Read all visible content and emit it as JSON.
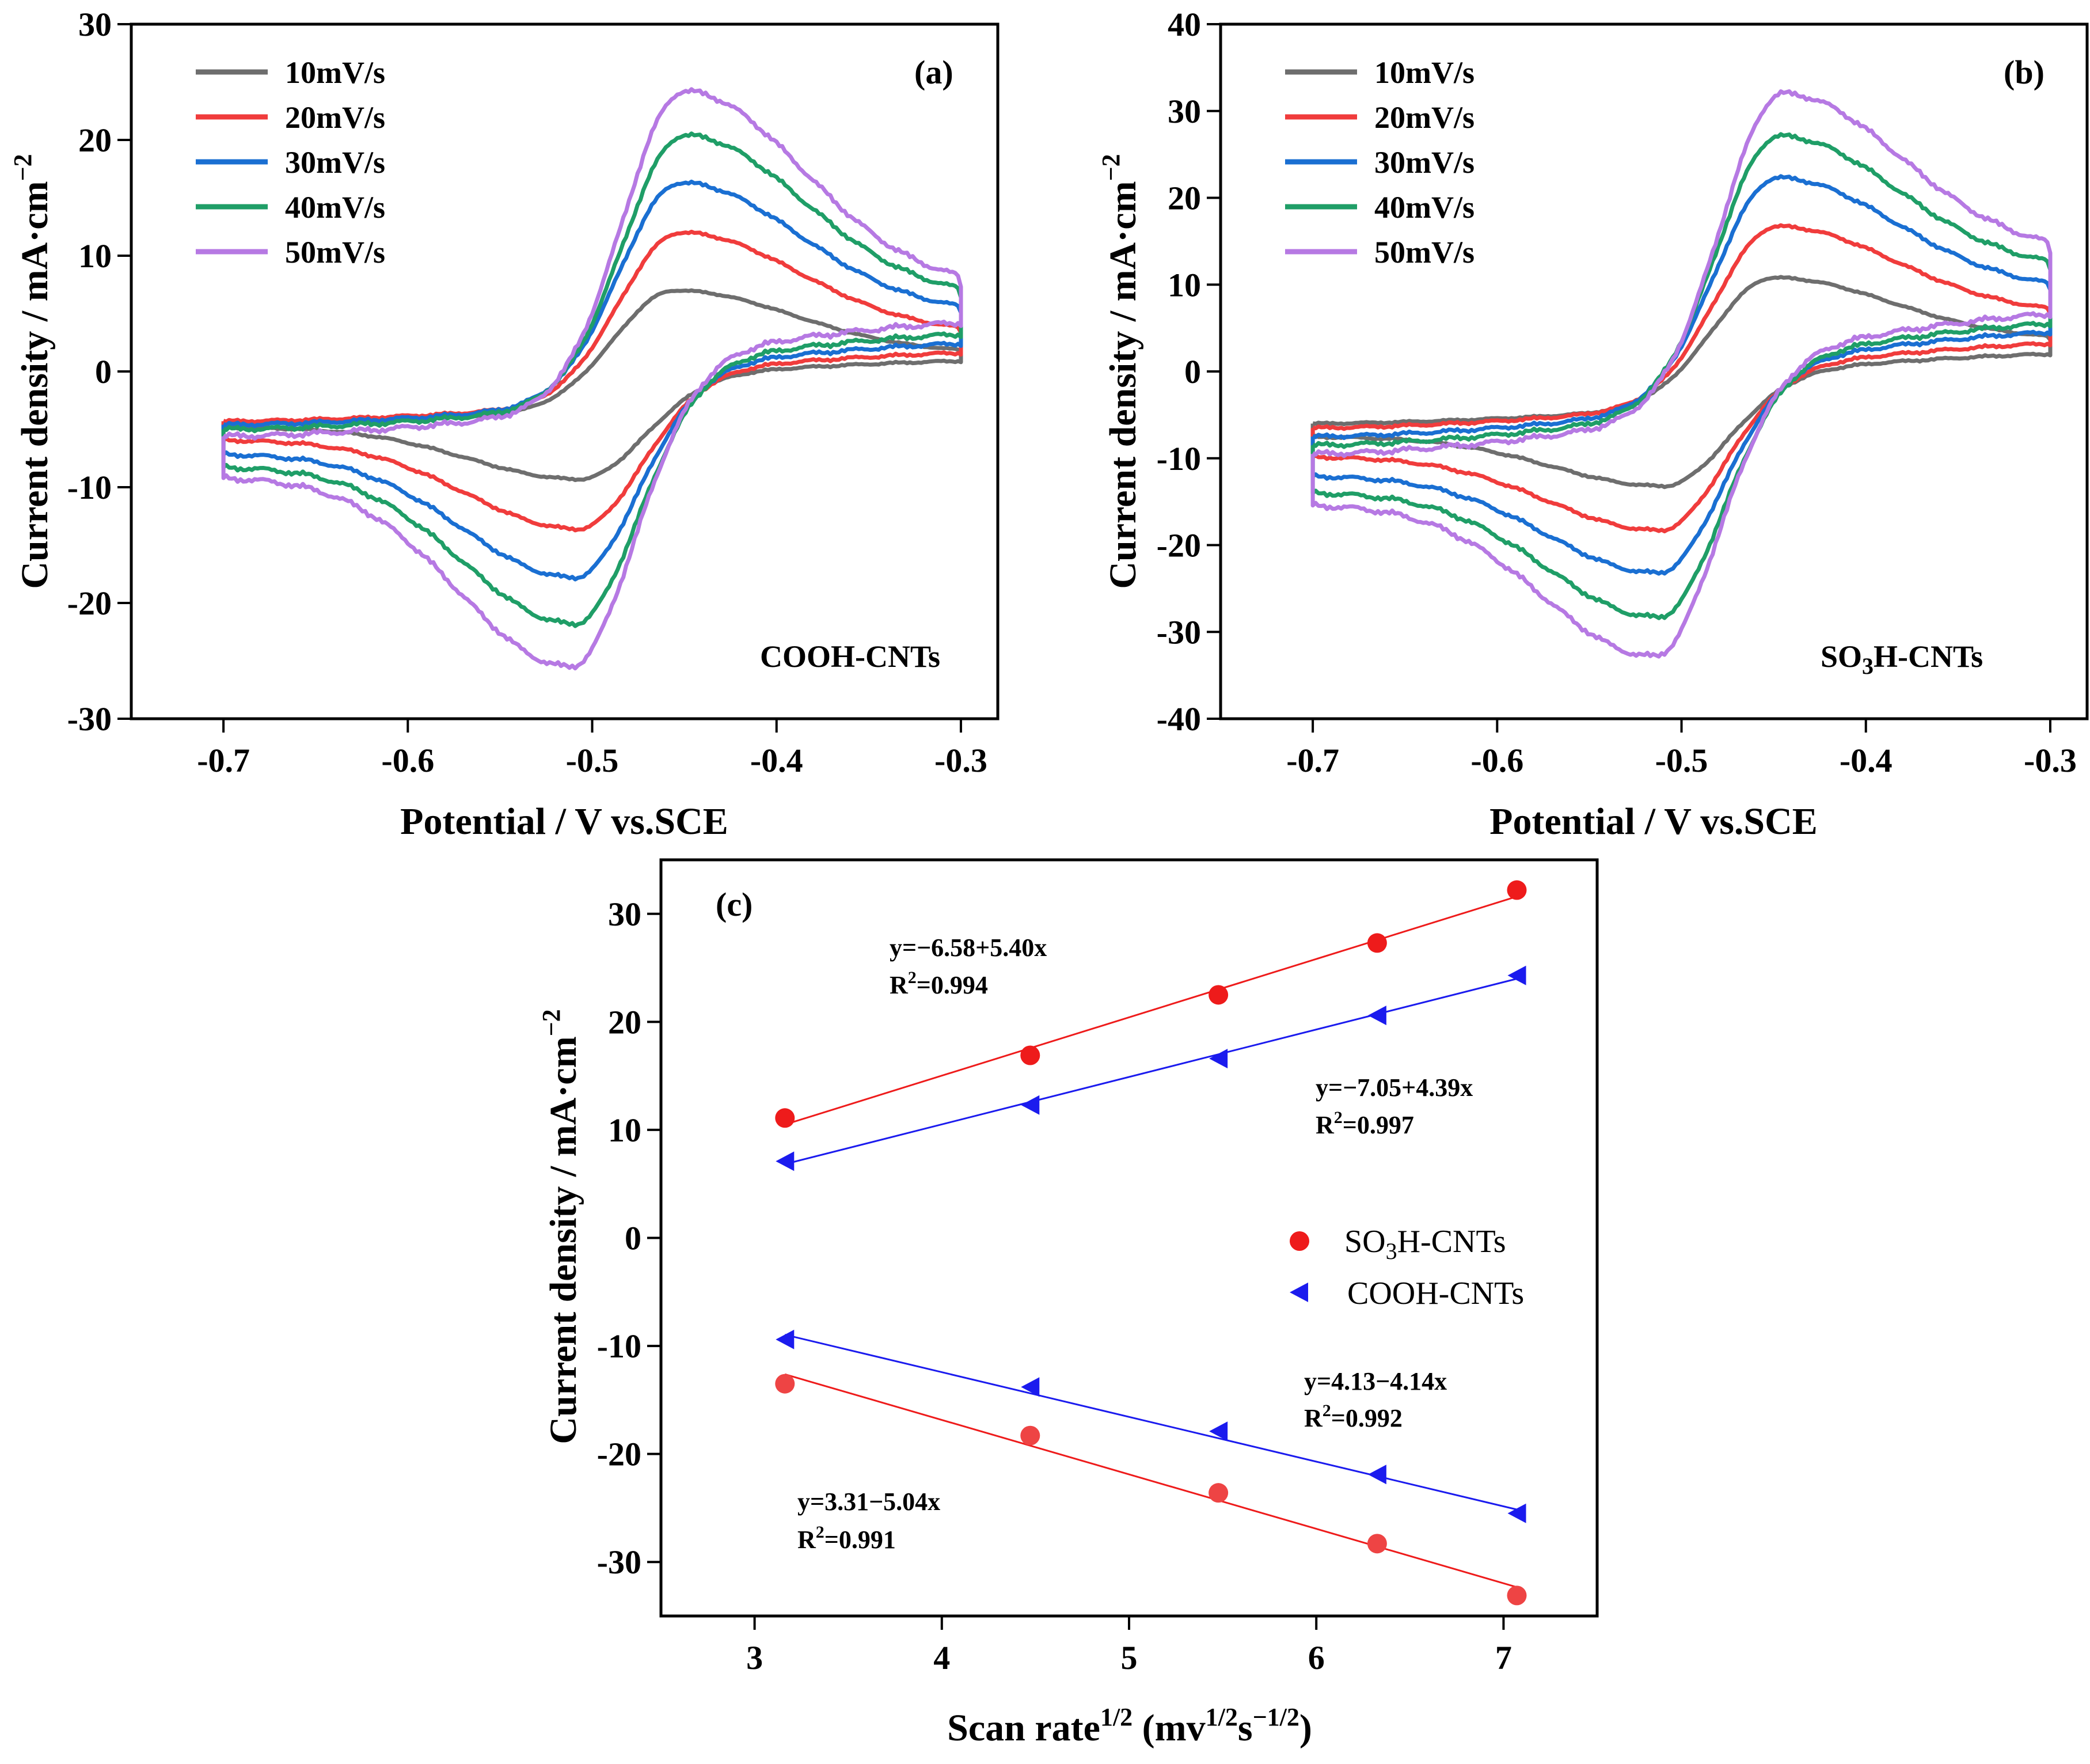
{
  "figure": {
    "colors": {
      "10mV/s": "#6e6e6e",
      "20mV/s": "#f03c3c",
      "30mV/s": "#1a6fd2",
      "40mV/s": "#1f9e67",
      "50mV/s": "#b679e3",
      "SO3H-CNTs": "#ee1b1b",
      "COOH-CNTs": "#1b1bee"
    }
  },
  "chart_data": [
    {
      "id": "a",
      "type": "line",
      "panel_label": "(a)",
      "material_label": "COOH-CNTs",
      "xlabel": "Potential / V vs.SCE",
      "ylabel": "Current density / mA·cm",
      "ylabel_sup": "−2",
      "xlim": [
        -0.75,
        -0.28
      ],
      "ylim": [
        -30,
        30
      ],
      "x_ticks": [
        -0.7,
        -0.6,
        -0.5,
        -0.4,
        -0.3
      ],
      "x_tick_labels": [
        "-0.7",
        "-0.6",
        "-0.5",
        "-0.4",
        "-0.3"
      ],
      "y_ticks": [
        -30,
        -20,
        -10,
        0,
        10,
        20,
        30
      ],
      "y_tick_labels": [
        "-30",
        "-20",
        "-10",
        "0",
        "10",
        "20",
        "30"
      ],
      "legend": "top-left",
      "series": [
        {
          "name": "10mV/s",
          "anodic_peak": [
            -0.455,
            7.0
          ],
          "cathodic_peak": [
            -0.507,
            -9.3
          ],
          "start_low": -4.5,
          "start_high": -4.8,
          "end_high": 1.6,
          "end_low": 0.9
        },
        {
          "name": "20mV/s",
          "anodic_peak": [
            -0.452,
            12.0
          ],
          "cathodic_peak": [
            -0.508,
            -13.6
          ],
          "start_low": -4.3,
          "start_high": -5.9,
          "end_high": 3.3,
          "end_low": 1.6
        },
        {
          "name": "30mV/s",
          "anodic_peak": [
            -0.452,
            16.3
          ],
          "cathodic_peak": [
            -0.51,
            -17.8
          ],
          "start_low": -4.6,
          "start_high": -7.1,
          "end_high": 5.0,
          "end_low": 2.4
        },
        {
          "name": "40mV/s",
          "anodic_peak": [
            -0.45,
            20.4
          ],
          "cathodic_peak": [
            -0.51,
            -21.8
          ],
          "start_low": -5.0,
          "start_high": -8.2,
          "end_high": 6.3,
          "end_low": 3.2
        },
        {
          "name": "50mV/s",
          "anodic_peak": [
            -0.45,
            24.2
          ],
          "cathodic_peak": [
            -0.512,
            -25.5
          ],
          "start_low": -5.6,
          "start_high": -9.1,
          "end_high": 7.2,
          "end_low": 4.2
        }
      ]
    },
    {
      "id": "b",
      "type": "line",
      "panel_label": "(b)",
      "material_label": "SO",
      "material_sub": "3",
      "material_rest": "H-CNTs",
      "xlabel": "Potential / V vs.SCE",
      "ylabel": "Current density / mA·cm",
      "ylabel_sup": "−2",
      "xlim": [
        -0.75,
        -0.28
      ],
      "ylim": [
        -40,
        40
      ],
      "x_ticks": [
        -0.7,
        -0.6,
        -0.5,
        -0.4,
        -0.3
      ],
      "x_tick_labels": [
        "-0.7",
        "-0.6",
        "-0.5",
        "-0.4",
        "-0.3"
      ],
      "y_ticks": [
        -40,
        -30,
        -20,
        -10,
        0,
        10,
        20,
        30,
        40
      ],
      "y_tick_labels": [
        "-40",
        "-30",
        "-20",
        "-10",
        "0",
        "10",
        "20",
        "30",
        "40"
      ],
      "legend": "top-left",
      "series": [
        {
          "name": "10mV/s",
          "anodic_peak": [
            -0.45,
            10.8
          ],
          "cathodic_peak": [
            -0.51,
            -13.2
          ],
          "start_low": -6.0,
          "start_high": -7.5,
          "end_high": 3.6,
          "end_low": 2.0
        },
        {
          "name": "20mV/s",
          "anodic_peak": [
            -0.448,
            16.7
          ],
          "cathodic_peak": [
            -0.512,
            -18.3
          ],
          "start_low": -6.5,
          "start_high": -9.8,
          "end_high": 6.6,
          "end_low": 3.2
        },
        {
          "name": "30mV/s",
          "anodic_peak": [
            -0.448,
            22.3
          ],
          "cathodic_peak": [
            -0.513,
            -23.2
          ],
          "start_low": -7.5,
          "start_high": -12.0,
          "end_high": 9.3,
          "end_low": 4.5
        },
        {
          "name": "40mV/s",
          "anodic_peak": [
            -0.447,
            27.1
          ],
          "cathodic_peak": [
            -0.513,
            -28.3
          ],
          "start_low": -8.5,
          "start_high": -13.9,
          "end_high": 11.6,
          "end_low": 5.5
        },
        {
          "name": "50mV/s",
          "anodic_peak": [
            -0.445,
            32.0
          ],
          "cathodic_peak": [
            -0.515,
            -32.8
          ],
          "start_low": -9.5,
          "start_high": -15.3,
          "end_high": 13.5,
          "end_low": 6.6
        }
      ]
    },
    {
      "id": "c",
      "type": "scatter",
      "panel_label": "(c)",
      "xlabel": "Scan rate",
      "xlabel_sup": "1/2",
      "xlabel_unit_open": " (mv",
      "xlabel_unit_sup1": "1/2",
      "xlabel_unit_mid": "s",
      "xlabel_unit_sup2": "−1/2",
      "xlabel_unit_close": ")",
      "ylabel": "Current density / mA·cm",
      "ylabel_sup": "−2",
      "xlim": [
        2.5,
        7.5
      ],
      "ylim": [
        -35,
        35
      ],
      "x_ticks": [
        3,
        4,
        5,
        6,
        7
      ],
      "x_tick_labels": [
        "3",
        "4",
        "5",
        "6",
        "7"
      ],
      "y_ticks": [
        -30,
        -20,
        -10,
        0,
        10,
        20,
        30
      ],
      "y_tick_labels": [
        "-30",
        "-20",
        "-10",
        "0",
        "10",
        "20",
        "30"
      ],
      "legend": "center-right",
      "x": [
        3.162,
        4.472,
        5.477,
        6.325,
        7.071
      ],
      "series": [
        {
          "name": "SO3H-CNTs",
          "branch": "anodic",
          "marker": "circle",
          "values": [
            11.1,
            16.9,
            22.5,
            27.3,
            32.2
          ],
          "fit": {
            "intercept": -6.58,
            "slope": 5.4
          }
        },
        {
          "name": "SO3H-CNTs",
          "branch": "cathodic",
          "marker": "circle",
          "values": [
            -13.5,
            -18.3,
            -23.6,
            -28.3,
            -33.1
          ],
          "fit": {
            "intercept": 3.31,
            "slope": -5.04
          }
        },
        {
          "name": "COOH-CNTs",
          "branch": "anodic",
          "marker": "triangle-left",
          "values": [
            7.1,
            12.3,
            16.6,
            20.6,
            24.3
          ],
          "fit": {
            "intercept": -7.05,
            "slope": 4.39
          }
        },
        {
          "name": "COOH-CNTs",
          "branch": "cathodic",
          "marker": "triangle-left",
          "values": [
            -9.4,
            -13.8,
            -17.9,
            -21.9,
            -25.5
          ],
          "fit": {
            "intercept": 4.13,
            "slope": -4.14
          }
        }
      ],
      "legend_entries": [
        {
          "pre": "SO",
          "sub": "3",
          "post": "H-CNTs"
        },
        {
          "pre": "COOH-CNTs",
          "sub": "",
          "post": ""
        }
      ],
      "annotations": [
        {
          "eq": "y=−6.58+5.40x",
          "r2_label": "R",
          "r2_sup": "2",
          "r2_value": "=0.994"
        },
        {
          "eq": "y=−7.05+4.39x",
          "r2_label": "R",
          "r2_sup": "2",
          "r2_value": "=0.997"
        },
        {
          "eq": "y=4.13−4.14x",
          "r2_label": "R",
          "r2_sup": "2",
          "r2_value": "=0.992"
        },
        {
          "eq": "y=3.31−5.04x",
          "r2_label": "R",
          "r2_sup": "2",
          "r2_value": "=0.991"
        }
      ]
    }
  ]
}
